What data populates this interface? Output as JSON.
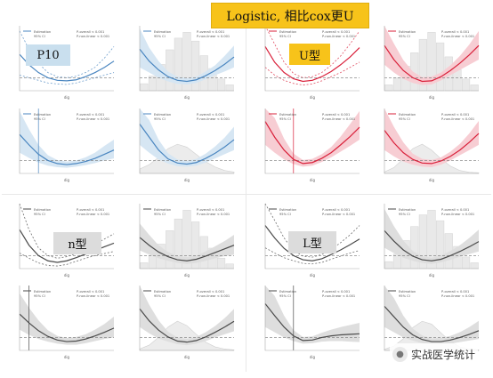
{
  "labels": {
    "title_banner": "Logistic, 相比cox更U",
    "p10": "P10",
    "u_shape": "U型",
    "n_shape": "n型",
    "l_shape": "L型",
    "watermark": "实战医学统计",
    "legend_estimation": "Estimation",
    "legend_ci": "95% CI",
    "p_overall": "P-overall < 0.001",
    "p_nonlinear": "P-non-linear < 0.001",
    "xlabel": "dig"
  },
  "colors": {
    "blue": "#4a86c0",
    "blue_band": "#d6e6f3",
    "red": "#d9203a",
    "red_band": "#f7cdd3",
    "gray": "#4a4a4a",
    "gray_band": "#dedede",
    "hist": "#e9e9e9",
    "banner": "#f7c31a"
  },
  "chart_data": [
    {
      "type": "line",
      "group": "blue",
      "x": [
        0,
        1,
        2,
        3,
        4,
        5,
        6,
        7,
        8,
        9,
        10
      ],
      "values": [
        1.45,
        1.25,
        1.1,
        1.0,
        0.95,
        0.94,
        0.96,
        1.02,
        1.1,
        1.2,
        1.32
      ],
      "ci_low": [
        1.05,
        1.0,
        0.95,
        0.9,
        0.88,
        0.87,
        0.9,
        0.95,
        1.0,
        1.05,
        1.1
      ],
      "ci_high": [
        1.9,
        1.55,
        1.28,
        1.1,
        1.02,
        1.0,
        1.03,
        1.1,
        1.2,
        1.38,
        1.6
      ],
      "dashed_ci": true,
      "reference_lines": [
        1
      ],
      "xlabel": "dig"
    },
    {
      "type": "line",
      "group": "blue",
      "x": [
        0,
        1,
        2,
        3,
        4,
        5,
        6,
        7,
        8,
        9,
        10
      ],
      "values": [
        1.55,
        1.32,
        1.15,
        1.02,
        0.95,
        0.93,
        0.96,
        1.04,
        1.14,
        1.26,
        1.4
      ],
      "ci_low": [
        1.2,
        1.1,
        1.0,
        0.93,
        0.88,
        0.87,
        0.9,
        0.97,
        1.05,
        1.12,
        1.2
      ],
      "ci_high": [
        1.95,
        1.58,
        1.32,
        1.12,
        1.02,
        0.99,
        1.02,
        1.12,
        1.24,
        1.42,
        1.62
      ],
      "histogram": [
        0.12,
        0.25,
        0.45,
        0.7,
        0.9,
        1.0,
        0.85,
        0.6,
        0.38,
        0.2,
        0.1
      ],
      "reference_lines": [
        1
      ],
      "xlabel": "dig"
    },
    {
      "type": "line",
      "group": "red",
      "x": [
        0,
        1,
        2,
        3,
        4,
        5,
        6,
        7,
        8,
        9,
        10
      ],
      "values": [
        1.6,
        1.3,
        1.1,
        0.98,
        0.93,
        0.95,
        1.02,
        1.12,
        1.25,
        1.4,
        1.58
      ],
      "ci_low": [
        1.2,
        1.05,
        0.95,
        0.89,
        0.86,
        0.88,
        0.94,
        1.02,
        1.1,
        1.2,
        1.3
      ],
      "ci_high": [
        2.1,
        1.65,
        1.3,
        1.08,
        1.0,
        1.02,
        1.1,
        1.24,
        1.42,
        1.65,
        1.9
      ],
      "dashed_ci": true,
      "reference_lines": [
        1
      ],
      "xlabel": "dig"
    },
    {
      "type": "line",
      "group": "red",
      "x": [
        0,
        1,
        2,
        3,
        4,
        5,
        6,
        7,
        8,
        9,
        10
      ],
      "values": [
        1.62,
        1.35,
        1.14,
        1.0,
        0.93,
        0.94,
        1.02,
        1.14,
        1.28,
        1.44,
        1.62
      ],
      "ci_low": [
        1.25,
        1.1,
        0.98,
        0.9,
        0.86,
        0.87,
        0.95,
        1.05,
        1.15,
        1.25,
        1.35
      ],
      "ci_high": [
        2.05,
        1.66,
        1.34,
        1.12,
        1.01,
        1.02,
        1.1,
        1.24,
        1.42,
        1.64,
        1.9
      ],
      "histogram": [
        0.1,
        0.22,
        0.42,
        0.65,
        0.88,
        1.0,
        0.82,
        0.58,
        0.36,
        0.2,
        0.1
      ],
      "reference_lines": [
        1
      ],
      "xlabel": "dig"
    },
    {
      "type": "line",
      "group": "blue",
      "x": [
        0,
        1,
        2,
        3,
        4,
        5,
        6,
        7,
        8,
        9,
        10
      ],
      "values": [
        1.5,
        1.3,
        1.12,
        1.0,
        0.94,
        0.92,
        0.94,
        0.98,
        1.04,
        1.12,
        1.2
      ],
      "ci_low": [
        1.15,
        1.05,
        0.96,
        0.9,
        0.87,
        0.86,
        0.88,
        0.91,
        0.95,
        1.0,
        1.04
      ],
      "ci_high": [
        1.95,
        1.6,
        1.3,
        1.1,
        1.01,
        0.98,
        1.0,
        1.06,
        1.15,
        1.28,
        1.4
      ],
      "reference_lines": [
        1
      ],
      "vline_x": 2,
      "xlabel": "dig"
    },
    {
      "type": "line",
      "group": "blue",
      "x": [
        0,
        1,
        2,
        3,
        4,
        5,
        6,
        7,
        8,
        9,
        10
      ],
      "values": [
        1.7,
        1.45,
        1.2,
        1.03,
        0.95,
        0.93,
        0.96,
        1.04,
        1.14,
        1.26,
        1.4
      ],
      "ci_low": [
        1.3,
        1.15,
        1.02,
        0.94,
        0.89,
        0.88,
        0.9,
        0.96,
        1.04,
        1.12,
        1.2
      ],
      "ci_high": [
        2.2,
        1.78,
        1.4,
        1.14,
        1.02,
        0.99,
        1.03,
        1.13,
        1.27,
        1.44,
        1.65
      ],
      "density": [
        0.15,
        0.3,
        0.55,
        0.85,
        1.0,
        0.9,
        0.65,
        0.4,
        0.22,
        0.1,
        0.05
      ],
      "reference_lines": [
        1
      ],
      "xlabel": "dig"
    },
    {
      "type": "line",
      "group": "red",
      "x": [
        0,
        1,
        2,
        3,
        4,
        5,
        6,
        7,
        8,
        9,
        10
      ],
      "values": [
        1.75,
        1.45,
        1.2,
        1.02,
        0.94,
        0.96,
        1.04,
        1.15,
        1.3,
        1.46,
        1.64
      ],
      "ci_low": [
        1.3,
        1.15,
        1.02,
        0.93,
        0.88,
        0.9,
        0.97,
        1.06,
        1.17,
        1.28,
        1.4
      ],
      "ci_high": [
        2.3,
        1.82,
        1.42,
        1.13,
        1.01,
        1.03,
        1.12,
        1.26,
        1.46,
        1.7,
        1.95
      ],
      "reference_lines": [
        1
      ],
      "vline_x": 3,
      "xlabel": "dig"
    },
    {
      "type": "line",
      "group": "red",
      "x": [
        0,
        1,
        2,
        3,
        4,
        5,
        6,
        7,
        8,
        9,
        10
      ],
      "values": [
        1.58,
        1.34,
        1.15,
        1.02,
        0.95,
        0.94,
        0.99,
        1.08,
        1.2,
        1.35,
        1.52
      ],
      "ci_low": [
        1.2,
        1.08,
        0.98,
        0.92,
        0.88,
        0.87,
        0.92,
        1.0,
        1.1,
        1.2,
        1.3
      ],
      "ci_high": [
        2.05,
        1.65,
        1.35,
        1.13,
        1.03,
        1.01,
        1.06,
        1.17,
        1.32,
        1.52,
        1.76
      ],
      "density": [
        0.05,
        0.2,
        0.5,
        0.85,
        1.0,
        0.8,
        0.5,
        0.25,
        0.1,
        0.04,
        0.02
      ],
      "reference_lines": [
        1
      ],
      "xlabel": "dig"
    },
    {
      "type": "line",
      "group": "gray",
      "x": [
        0,
        1,
        2,
        3,
        4,
        5,
        6,
        7,
        8,
        9,
        10
      ],
      "values": [
        1.5,
        1.2,
        1.0,
        0.9,
        0.87,
        0.9,
        0.96,
        1.03,
        1.1,
        1.17,
        1.24
      ],
      "ci_low": [
        1.05,
        0.95,
        0.86,
        0.81,
        0.8,
        0.83,
        0.89,
        0.95,
        1.0,
        1.04,
        1.08
      ],
      "ci_high": [
        2.1,
        1.5,
        1.15,
        1.0,
        0.95,
        0.98,
        1.04,
        1.12,
        1.22,
        1.32,
        1.42
      ],
      "dashed_ci": true,
      "reference_lines": [
        1
      ],
      "xlabel": "dig"
    },
    {
      "type": "line",
      "group": "gray",
      "x": [
        0,
        1,
        2,
        3,
        4,
        5,
        6,
        7,
        8,
        9,
        10
      ],
      "values": [
        1.35,
        1.2,
        1.07,
        0.98,
        0.92,
        0.9,
        0.93,
        0.99,
        1.06,
        1.13,
        1.2
      ],
      "ci_low": [
        1.1,
        1.02,
        0.95,
        0.9,
        0.86,
        0.84,
        0.86,
        0.9,
        0.95,
        0.99,
        1.02
      ],
      "ci_high": [
        1.62,
        1.4,
        1.2,
        1.07,
        0.99,
        0.97,
        1.0,
        1.08,
        1.18,
        1.28,
        1.4
      ],
      "histogram": [
        0.1,
        0.22,
        0.42,
        0.65,
        0.85,
        1.0,
        0.8,
        0.55,
        0.35,
        0.18,
        0.08
      ],
      "reference_lines": [
        1
      ],
      "xlabel": "dig"
    },
    {
      "type": "line",
      "group": "gray",
      "x": [
        0,
        1,
        2,
        3,
        4,
        5,
        6,
        7,
        8,
        9,
        10
      ],
      "values": [
        1.58,
        1.34,
        1.14,
        1.0,
        0.92,
        0.9,
        0.94,
        1.02,
        1.11,
        1.21,
        1.32
      ],
      "ci_low": [
        1.15,
        1.05,
        0.96,
        0.9,
        0.85,
        0.84,
        0.87,
        0.93,
        0.99,
        1.05,
        1.1
      ],
      "ci_high": [
        2.12,
        1.68,
        1.34,
        1.1,
        0.99,
        0.97,
        1.02,
        1.12,
        1.25,
        1.4,
        1.58
      ],
      "dashed_ci": true,
      "reference_lines": [
        1
      ],
      "xlabel": "dig"
    },
    {
      "type": "line",
      "group": "gray",
      "x": [
        0,
        1,
        2,
        3,
        4,
        5,
        6,
        7,
        8,
        9,
        10
      ],
      "values": [
        1.48,
        1.28,
        1.11,
        0.99,
        0.92,
        0.9,
        0.93,
        1.0,
        1.08,
        1.17,
        1.27
      ],
      "ci_low": [
        1.15,
        1.05,
        0.96,
        0.9,
        0.86,
        0.84,
        0.87,
        0.92,
        0.98,
        1.03,
        1.08
      ],
      "ci_high": [
        1.9,
        1.57,
        1.29,
        1.09,
        0.99,
        0.96,
        1.0,
        1.09,
        1.2,
        1.34,
        1.5
      ],
      "histogram": [
        0.12,
        0.25,
        0.48,
        0.72,
        0.92,
        1.0,
        0.82,
        0.6,
        0.38,
        0.2,
        0.1
      ],
      "reference_lines": [
        1
      ],
      "xlabel": "dig"
    },
    {
      "type": "line",
      "group": "gray",
      "x": [
        0,
        1,
        2,
        3,
        4,
        5,
        6,
        7,
        8,
        9,
        10
      ],
      "values": [
        1.45,
        1.28,
        1.13,
        1.02,
        0.95,
        0.92,
        0.93,
        0.97,
        1.03,
        1.1,
        1.18
      ],
      "ci_low": [
        1.15,
        1.05,
        0.97,
        0.92,
        0.88,
        0.86,
        0.86,
        0.89,
        0.93,
        0.97,
        1.0
      ],
      "ci_high": [
        1.85,
        1.57,
        1.33,
        1.14,
        1.03,
        0.99,
        1.01,
        1.06,
        1.15,
        1.26,
        1.4
      ],
      "reference_lines": [
        1
      ],
      "vline_x": 1,
      "xlabel": "dig"
    },
    {
      "type": "line",
      "group": "gray",
      "x": [
        0,
        1,
        2,
        3,
        4,
        5,
        6,
        7,
        8,
        9,
        10
      ],
      "values": [
        1.55,
        1.32,
        1.14,
        1.01,
        0.93,
        0.91,
        0.94,
        1.01,
        1.1,
        1.2,
        1.31
      ],
      "ci_low": [
        1.2,
        1.08,
        0.98,
        0.92,
        0.87,
        0.85,
        0.88,
        0.93,
        1.0,
        1.06,
        1.12
      ],
      "ci_high": [
        2.0,
        1.63,
        1.33,
        1.11,
        1.0,
        0.97,
        1.01,
        1.1,
        1.22,
        1.37,
        1.55
      ],
      "density": [
        0.05,
        0.18,
        0.45,
        0.8,
        1.0,
        0.85,
        0.55,
        0.28,
        0.12,
        0.05,
        0.02
      ],
      "reference_lines": [
        1
      ],
      "xlabel": "dig"
    },
    {
      "type": "line",
      "group": "gray",
      "x": [
        0,
        1,
        2,
        3,
        4,
        5,
        6,
        7,
        8,
        9,
        10
      ],
      "values": [
        1.65,
        1.42,
        1.2,
        1.03,
        0.94,
        0.95,
        1.0,
        1.03,
        1.05,
        1.06,
        1.07
      ],
      "ci_low": [
        1.2,
        1.1,
        1.0,
        0.93,
        0.88,
        0.89,
        0.92,
        0.93,
        0.93,
        0.92,
        0.91
      ],
      "ci_high": [
        2.2,
        1.8,
        1.42,
        1.14,
        1.01,
        1.02,
        1.09,
        1.15,
        1.2,
        1.24,
        1.28
      ],
      "reference_lines": [
        1
      ],
      "vline_x": 3,
      "xlabel": "dig"
    },
    {
      "type": "line",
      "group": "gray",
      "x": [
        0,
        1,
        2,
        3,
        4,
        5,
        6,
        7,
        8,
        9,
        10
      ],
      "values": [
        1.6,
        1.4,
        1.2,
        1.05,
        0.96,
        0.92,
        0.92,
        0.95,
        1.0,
        1.06,
        1.13
      ],
      "ci_low": [
        1.2,
        1.1,
        1.0,
        0.94,
        0.89,
        0.86,
        0.86,
        0.88,
        0.91,
        0.94,
        0.97
      ],
      "ci_high": [
        2.1,
        1.76,
        1.42,
        1.17,
        1.04,
        0.98,
        0.99,
        1.03,
        1.1,
        1.2,
        1.32
      ],
      "density": [
        0.04,
        0.15,
        0.4,
        0.78,
        1.0,
        0.9,
        0.6,
        0.3,
        0.12,
        0.05,
        0.02
      ],
      "reference_lines": [
        1
      ],
      "xlabel": "dig"
    }
  ]
}
